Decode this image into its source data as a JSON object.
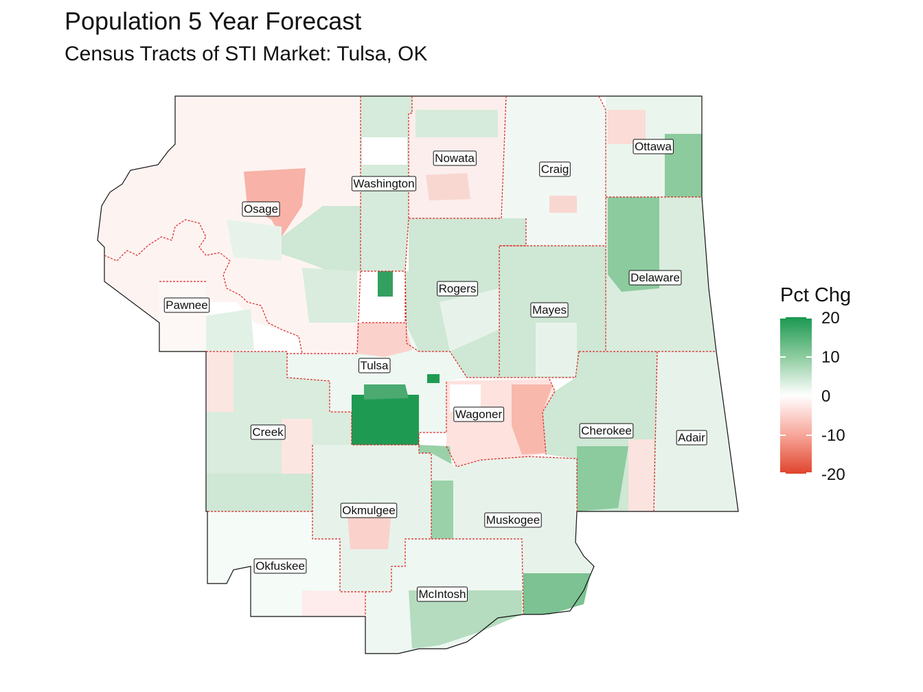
{
  "title": "Population 5 Year Forecast",
  "subtitle": "Census Tracts of STI Market: Tulsa, OK",
  "legend": {
    "title": "Pct Chg",
    "ticks": [
      "20",
      "10",
      "0",
      "-10",
      "-20"
    ],
    "colors": {
      "high": "#1a9850",
      "mid": "#ffffff",
      "low": "#e0442c"
    }
  },
  "counties": [
    {
      "name": "Ottawa"
    },
    {
      "name": "Nowata"
    },
    {
      "name": "Craig"
    },
    {
      "name": "Washington"
    },
    {
      "name": "Osage"
    },
    {
      "name": "Rogers"
    },
    {
      "name": "Delaware"
    },
    {
      "name": "Mayes"
    },
    {
      "name": "Pawnee"
    },
    {
      "name": "Tulsa"
    },
    {
      "name": "Wagoner"
    },
    {
      "name": "Cherokee"
    },
    {
      "name": "Creek"
    },
    {
      "name": "Adair"
    },
    {
      "name": "Okmulgee"
    },
    {
      "name": "Muskogee"
    },
    {
      "name": "Okfuskee"
    },
    {
      "name": "McIntosh"
    }
  ]
}
